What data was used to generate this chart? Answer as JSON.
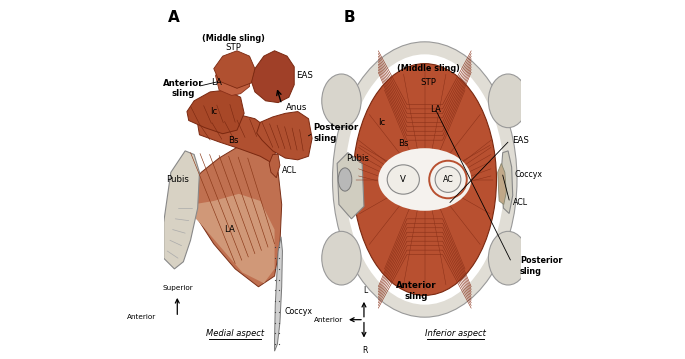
{
  "bg_color": "#ffffff",
  "muscle_color_dark": "#b5522b",
  "muscle_color_mid": "#c4684a",
  "muscle_color_light": "#d4927a",
  "bone_color": "#e8e0d0",
  "bone_outline": "#999999",
  "panel_A_label": "A",
  "panel_B_label": "B",
  "medial_aspect": "Medial aspect",
  "inferior_aspect": "Inferior aspect"
}
